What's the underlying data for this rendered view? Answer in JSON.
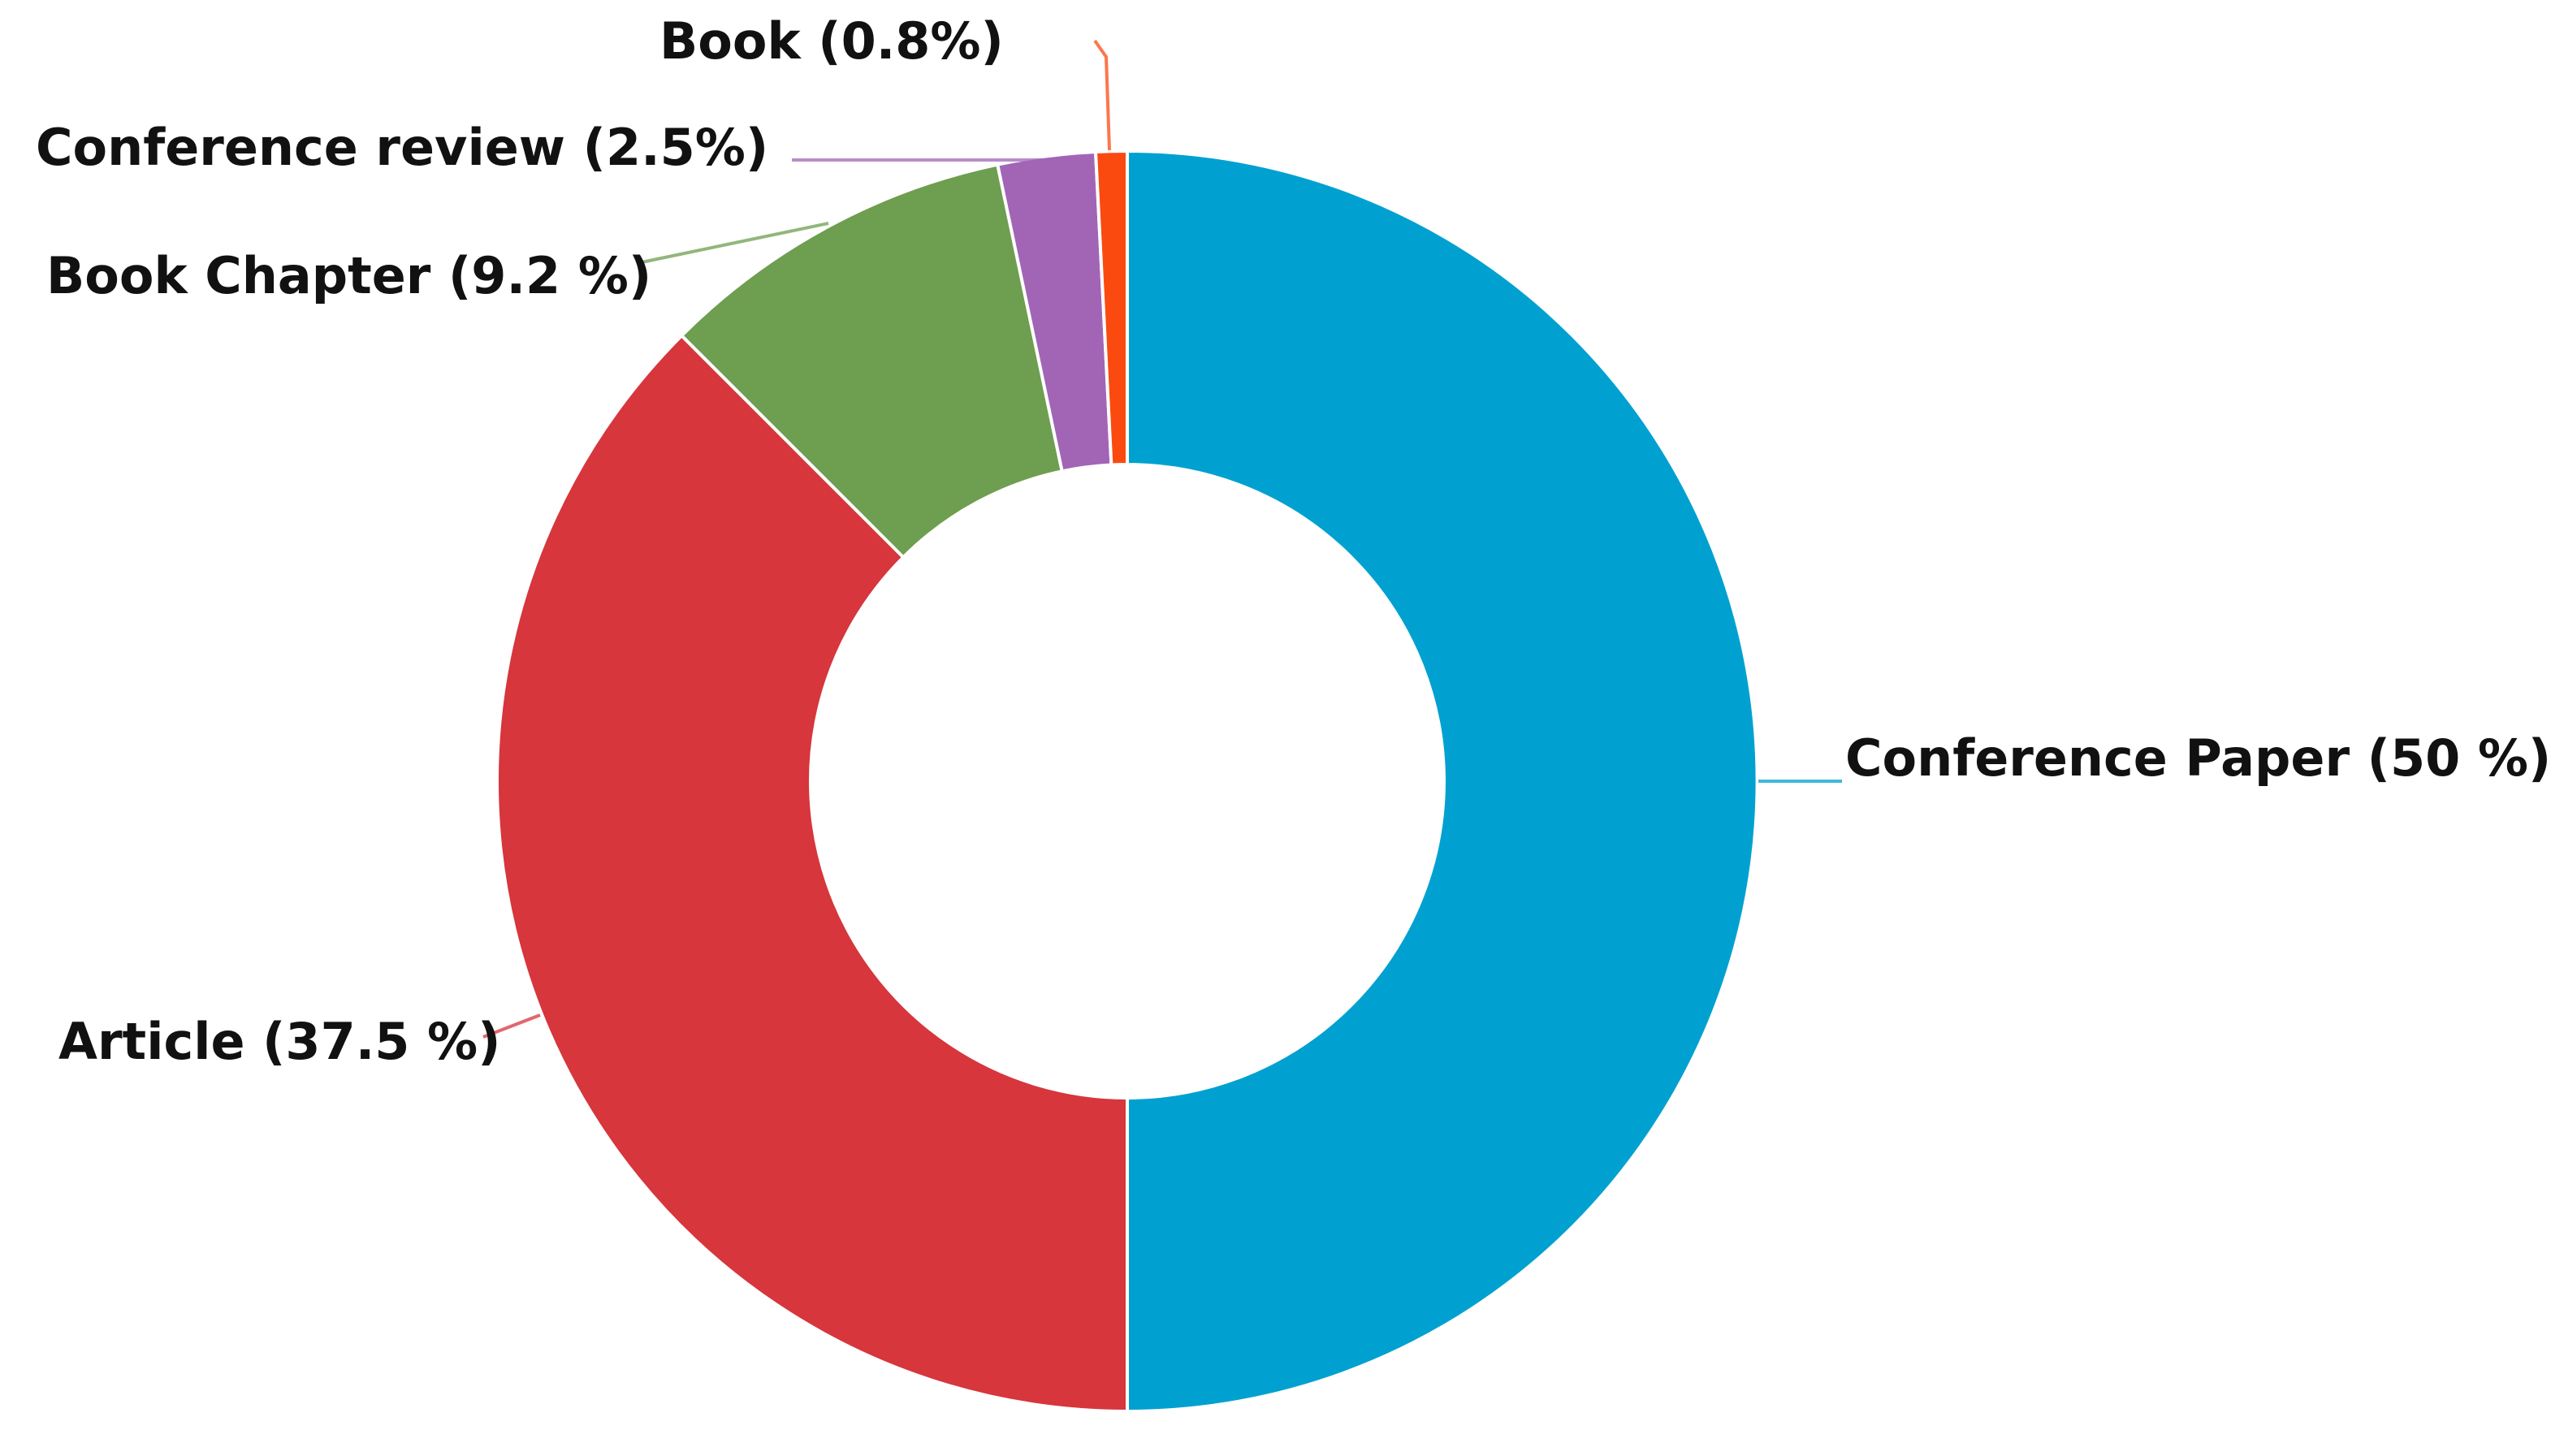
{
  "chart_data": {
    "type": "pie",
    "variant": "donut",
    "title": "",
    "legend": "none",
    "slices": [
      {
        "category": "Conference Paper",
        "value": 50,
        "label": "Conference Paper (50 %)",
        "color": "#00a1d0"
      },
      {
        "category": "Article",
        "value": 37.5,
        "label": "Article (37.5 %)",
        "color": "#d6363c"
      },
      {
        "category": "Book Chapter",
        "value": 9.2,
        "label": "Book Chapter (9.2 %)",
        "color": "#6e9e4f"
      },
      {
        "category": "Conference review",
        "value": 2.5,
        "label": "Conference review (2.5%)",
        "color": "#a265b6"
      },
      {
        "category": "Book",
        "value": 0.8,
        "label": "Book (0.8%)",
        "color": "#fb4a10"
      }
    ]
  }
}
